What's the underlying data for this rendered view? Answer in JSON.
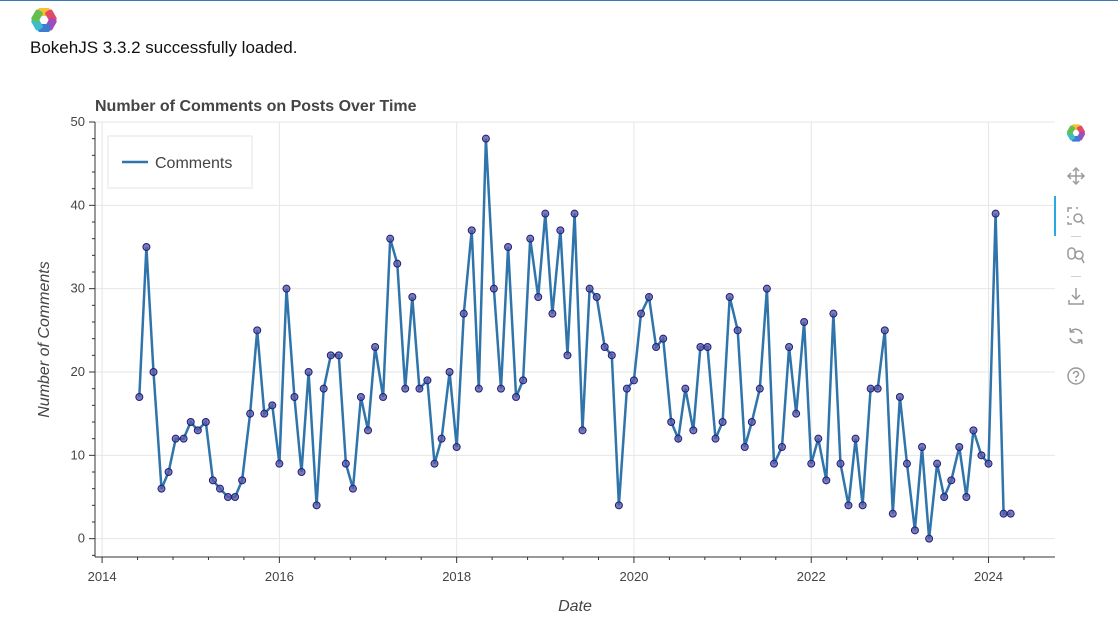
{
  "notebook": {
    "load_message": "BokehJS 3.3.2 successfully loaded."
  },
  "toolbar": {
    "tools": [
      {
        "name": "bokeh-logo-icon",
        "active": false
      },
      {
        "name": "pan-icon",
        "active": false
      },
      {
        "name": "box-zoom-icon",
        "active": true
      },
      {
        "name": "wheel-zoom-icon",
        "active": false
      },
      {
        "name": "save-icon",
        "active": false
      },
      {
        "name": "reset-icon",
        "active": false
      },
      {
        "name": "help-icon",
        "active": false
      }
    ]
  },
  "colors": {
    "line": "#2f74aa",
    "marker_fill": "#5a5aa6",
    "marker_stroke": "#1f1f7a",
    "grid": "#e6e6e6",
    "title": "#444444"
  },
  "chart_data": {
    "type": "line",
    "title": "Number of Comments on Posts Over Time",
    "xlabel": "Date",
    "ylabel": "Number of Comments",
    "xlim": [
      2013.92,
      2024.75
    ],
    "ylim": [
      -2.2,
      50
    ],
    "x_ticks": [
      2014,
      2016,
      2018,
      2020,
      2022,
      2024
    ],
    "y_ticks": [
      0,
      10,
      20,
      30,
      40,
      50
    ],
    "grid": true,
    "legend": {
      "position": "top-left",
      "entries": [
        "Comments"
      ]
    },
    "series": [
      {
        "name": "Comments",
        "x": [
          2014.42,
          2014.5,
          2014.58,
          2014.67,
          2014.75,
          2014.83,
          2014.92,
          2015.0,
          2015.08,
          2015.17,
          2015.25,
          2015.33,
          2015.42,
          2015.5,
          2015.58,
          2015.67,
          2015.75,
          2015.83,
          2015.92,
          2016.0,
          2016.08,
          2016.17,
          2016.25,
          2016.33,
          2016.42,
          2016.5,
          2016.58,
          2016.67,
          2016.75,
          2016.83,
          2016.92,
          2017.0,
          2017.08,
          2017.17,
          2017.25,
          2017.33,
          2017.42,
          2017.5,
          2017.58,
          2017.67,
          2017.75,
          2017.83,
          2017.92,
          2018.0,
          2018.08,
          2018.17,
          2018.25,
          2018.33,
          2018.42,
          2018.5,
          2018.58,
          2018.67,
          2018.75,
          2018.83,
          2018.92,
          2019.0,
          2019.08,
          2019.17,
          2019.25,
          2019.33,
          2019.42,
          2019.5,
          2019.58,
          2019.67,
          2019.75,
          2019.83,
          2019.92,
          2020.0,
          2020.08,
          2020.17,
          2020.25,
          2020.33,
          2020.42,
          2020.5,
          2020.58,
          2020.67,
          2020.75,
          2020.83,
          2020.92,
          2021.0,
          2021.08,
          2021.17,
          2021.25,
          2021.33,
          2021.42,
          2021.5,
          2021.58,
          2021.67,
          2021.75,
          2021.83,
          2021.92,
          2022.0,
          2022.08,
          2022.17,
          2022.25,
          2022.33,
          2022.42,
          2022.5,
          2022.58,
          2022.67,
          2022.75,
          2022.83,
          2022.92,
          2023.0,
          2023.08,
          2023.17,
          2023.25,
          2023.33,
          2023.42,
          2023.5,
          2023.58,
          2023.67,
          2023.75,
          2023.83,
          2023.92,
          2024.0,
          2024.08,
          2024.17,
          2024.25
        ],
        "values": [
          17,
          35,
          20,
          6,
          8,
          12,
          12,
          14,
          13,
          14,
          7,
          6,
          5,
          5,
          7,
          15,
          25,
          15,
          16,
          9,
          30,
          17,
          8,
          20,
          4,
          18,
          22,
          22,
          9,
          6,
          17,
          13,
          23,
          17,
          36,
          33,
          18,
          29,
          18,
          19,
          9,
          12,
          20,
          11,
          27,
          37,
          18,
          48,
          30,
          18,
          35,
          17,
          19,
          36,
          29,
          39,
          27,
          37,
          22,
          39,
          13,
          30,
          29,
          23,
          22,
          4,
          18,
          19,
          27,
          29,
          23,
          24,
          14,
          12,
          18,
          13,
          23,
          23,
          12,
          14,
          29,
          25,
          11,
          14,
          18,
          30,
          9,
          11,
          23,
          15,
          26,
          9,
          12,
          7,
          27,
          9,
          4,
          12,
          4,
          18,
          18,
          25,
          3,
          17,
          9,
          1,
          11,
          0,
          9,
          5,
          7,
          11,
          5,
          13,
          10,
          9,
          39,
          3,
          3
        ]
      }
    ]
  }
}
